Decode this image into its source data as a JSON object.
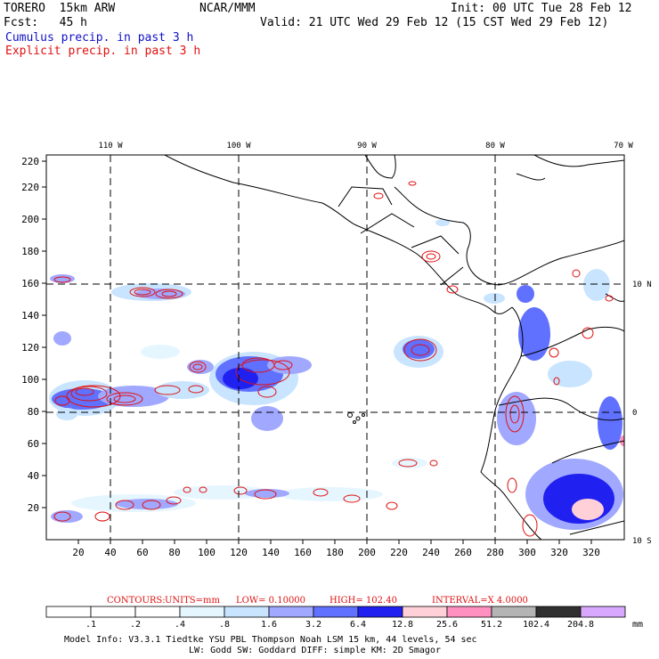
{
  "header": {
    "line1_left": "TORERO  15km ARW",
    "line1_center": "NCAR/MMM",
    "line1_right": "Init: 00 UTC Tue 28 Feb 12",
    "line2_left": "Fcst:   45 h",
    "line2_right": "Valid: 21 UTC Wed 29 Feb 12 (15 CST Wed 29 Feb 12)",
    "line3": "Cumulus precip. in past 3 h",
    "line4": "Explicit precip. in past 3 h"
  },
  "map": {
    "lon_labels": [
      "110 W",
      "100 W",
      "90 W",
      "80 W",
      "70 W"
    ],
    "lat_labels": [
      "10 N",
      "0",
      "10 S"
    ],
    "x_ticks": [
      "20",
      "40",
      "60",
      "80",
      "100",
      "120",
      "140",
      "160",
      "180",
      "200",
      "220",
      "240",
      "260",
      "280",
      "300",
      "320"
    ],
    "y_ticks": [
      "20",
      "40",
      "60",
      "80",
      "100",
      "120",
      "140",
      "160",
      "180",
      "200",
      "220"
    ]
  },
  "contour_info": {
    "contours": "CONTOURS:",
    "units": "UNITS=mm",
    "low": "LOW= 0.10000",
    "high": "HIGH=  102.40",
    "interval": "INTERVAL=X  4.0000"
  },
  "colorbar": {
    "labels": [
      ".1",
      ".2",
      ".4",
      ".8",
      "1.6",
      "3.2",
      "6.4",
      "12.8",
      "25.6",
      "51.2",
      "102.4",
      "204.8"
    ],
    "unit": "mm",
    "colors": [
      "#ffffff",
      "#ffffff",
      "#ffffff",
      "#e6f6ff",
      "#c8e4ff",
      "#a0a8ff",
      "#6070ff",
      "#2020f0",
      "#ffd0d8",
      "#ff90c0",
      "#b4b4b4",
      "#303030",
      "#d8a8ff"
    ]
  },
  "footer": {
    "line1": "Model Info: V3.3.1    Tiedtke YSU PBL  Thompson    Noah LSM  15 km,   44 levels,   54 sec",
    "line2": "LW: Godd SW: Goddard DIFF: simple KM: 2D Smagor"
  }
}
